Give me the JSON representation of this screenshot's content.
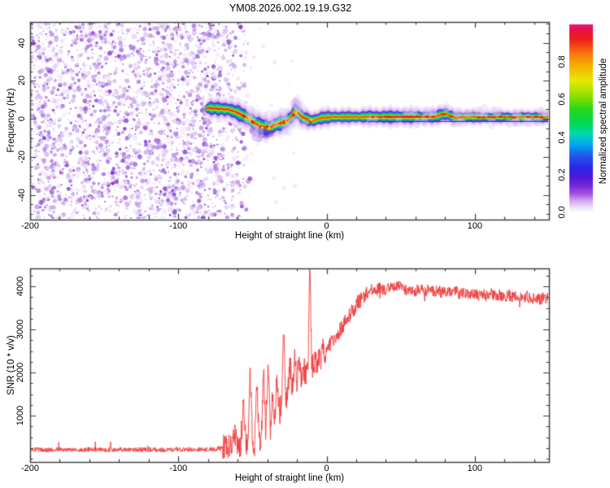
{
  "title": "YM08.2026.002.19.19.G32",
  "styles": {
    "axis_color": "#3a3a3a",
    "text_color": "#000000",
    "background": "#ffffff"
  },
  "chart_data": [
    {
      "type": "heatmap",
      "panel": "doppler-spectrogram",
      "xlabel": "Height of straight line (km)",
      "ylabel": "Frequency (Hz)",
      "xlim": [
        -200,
        150
      ],
      "ylim": [
        -53,
        51
      ],
      "x_major_ticks": [
        -200,
        -100,
        0,
        100
      ],
      "x_minor_step": 20,
      "y_major_ticks": [
        -40,
        -20,
        0,
        20,
        40
      ],
      "y_minor_step": 5,
      "grid": false,
      "colorbar": {
        "label": "Normalized spectral amplitude",
        "ticks": [
          0.0,
          0.2,
          0.4,
          0.6,
          0.8
        ],
        "range": [
          0,
          1
        ],
        "stops": [
          [
            0.0,
            "#ffffff"
          ],
          [
            0.02,
            "#f3e8fb"
          ],
          [
            0.06,
            "#d4aaf0"
          ],
          [
            0.1,
            "#a050e0"
          ],
          [
            0.14,
            "#7a28d8"
          ],
          [
            0.19,
            "#4a18d8"
          ],
          [
            0.24,
            "#2a2ae8"
          ],
          [
            0.3,
            "#2456ec"
          ],
          [
            0.36,
            "#00a8f0"
          ],
          [
            0.42,
            "#00d8b0"
          ],
          [
            0.47,
            "#00d855"
          ],
          [
            0.55,
            "#28d818"
          ],
          [
            0.62,
            "#90e000"
          ],
          [
            0.7,
            "#e8e800"
          ],
          [
            0.78,
            "#f8b000"
          ],
          [
            0.85,
            "#f87010"
          ],
          [
            0.92,
            "#f02018"
          ],
          [
            0.97,
            "#e81048"
          ],
          [
            1.0,
            "#e8187d"
          ]
        ]
      },
      "noise_region": {
        "x_full_until": -72,
        "x_fade_to": -50,
        "blob_count": 3200,
        "palette": [
          [
            "#f0e6fa",
            3
          ],
          [
            "#ddc3f4",
            3
          ],
          [
            "#c29ae9",
            2.5
          ],
          [
            "#a873e0",
            2
          ],
          [
            "#8a46d4",
            1.5
          ],
          [
            "#6b22c4",
            1
          ]
        ]
      },
      "echo_trace": {
        "comment": "points are [height_km, frequency_Hz, core_halfwidth_Hz, intensity]",
        "points": [
          [
            -82.5,
            5.2,
            0,
            0
          ],
          [
            -81,
            5.4,
            1.6,
            0.75
          ],
          [
            -79,
            5.8,
            2.0,
            0.9
          ],
          [
            -77,
            5.4,
            2.0,
            0.8
          ],
          [
            -75,
            5.6,
            1.8,
            0.7
          ],
          [
            -73,
            5.2,
            2.0,
            0.8
          ],
          [
            -71,
            5.4,
            1.9,
            0.85
          ],
          [
            -69,
            4.9,
            2.0,
            0.8
          ],
          [
            -67,
            5.1,
            2.1,
            0.85
          ],
          [
            -65,
            4.6,
            2.0,
            0.8
          ],
          [
            -63,
            4.1,
            2.0,
            0.75
          ],
          [
            -60,
            3.2,
            2.2,
            0.8
          ],
          [
            -57,
            2.0,
            2.3,
            0.85
          ],
          [
            -54,
            0.8,
            2.2,
            0.8
          ],
          [
            -51,
            -0.8,
            2.3,
            0.85
          ],
          [
            -48,
            -2.6,
            2.5,
            0.9
          ],
          [
            -45,
            -3.8,
            2.4,
            0.85
          ],
          [
            -42,
            -4.4,
            2.5,
            0.9
          ],
          [
            -39,
            -4.9,
            2.4,
            0.85
          ],
          [
            -36,
            -3.6,
            2.2,
            0.8
          ],
          [
            -33,
            -2.6,
            2.1,
            0.85
          ],
          [
            -30,
            -2.1,
            2.2,
            0.8
          ],
          [
            -27,
            -1.2,
            2.0,
            0.75
          ],
          [
            -24,
            0.8,
            2.2,
            0.85
          ],
          [
            -21,
            4.2,
            2.5,
            0.9
          ],
          [
            -19,
            3.0,
            2.2,
            0.85
          ],
          [
            -17,
            1.2,
            2.0,
            0.8
          ],
          [
            -15,
            0.4,
            1.9,
            0.85
          ],
          [
            -12,
            -0.6,
            1.9,
            0.9
          ],
          [
            -9,
            -0.9,
            1.8,
            0.85
          ],
          [
            -6,
            -0.1,
            1.8,
            0.9
          ],
          [
            -3,
            0.5,
            1.8,
            0.88
          ],
          [
            0,
            0.8,
            1.8,
            0.9
          ],
          [
            5,
            1.0,
            1.7,
            0.92
          ],
          [
            10,
            1.0,
            1.6,
            0.93
          ],
          [
            15,
            1.1,
            1.6,
            0.94
          ],
          [
            20,
            1.0,
            1.6,
            0.95
          ],
          [
            25,
            1.1,
            1.7,
            0.95
          ],
          [
            30,
            1.2,
            1.7,
            0.96
          ],
          [
            35,
            1.0,
            1.8,
            0.97
          ],
          [
            40,
            1.1,
            1.8,
            0.97
          ],
          [
            45,
            1.0,
            1.8,
            0.97
          ],
          [
            50,
            1.1,
            1.8,
            0.97
          ],
          [
            55,
            1.0,
            1.8,
            0.96
          ],
          [
            60,
            1.1,
            1.7,
            0.96
          ],
          [
            65,
            1.0,
            1.7,
            0.95
          ],
          [
            70,
            1.1,
            1.6,
            0.94
          ],
          [
            74,
            1.3,
            1.7,
            0.92
          ],
          [
            78,
            2.4,
            1.9,
            0.9
          ],
          [
            81,
            2.6,
            1.8,
            0.9
          ],
          [
            84,
            1.4,
            1.6,
            0.88
          ],
          [
            87,
            0.6,
            1.5,
            0.86
          ],
          [
            90,
            0.9,
            1.5,
            0.9
          ],
          [
            95,
            1.0,
            1.5,
            0.92
          ],
          [
            100,
            1.0,
            1.5,
            0.92
          ],
          [
            105,
            0.9,
            1.4,
            0.9
          ],
          [
            110,
            0.9,
            1.4,
            0.91
          ],
          [
            115,
            1.0,
            1.4,
            0.92
          ],
          [
            120,
            1.0,
            1.4,
            0.91
          ],
          [
            125,
            0.9,
            1.4,
            0.9
          ],
          [
            130,
            0.9,
            1.4,
            0.91
          ],
          [
            135,
            1.0,
            1.4,
            0.9
          ],
          [
            140,
            1.0,
            1.4,
            0.91
          ],
          [
            145,
            0.9,
            1.4,
            0.9
          ],
          [
            150,
            1.0,
            1.4,
            0.91
          ]
        ],
        "layers": [
          [
            1.0,
            "#f2e6fb"
          ],
          [
            0.76,
            "#ddc0f6"
          ],
          [
            0.58,
            "#b684e8"
          ],
          [
            0.5,
            "#7a34d4"
          ],
          [
            0.44,
            "#3a30e4"
          ],
          [
            0.37,
            "#00b2ec"
          ],
          [
            0.3,
            "#00d455"
          ],
          [
            0.175,
            "#d8e800"
          ],
          [
            0.1,
            "#f0331a"
          ]
        ],
        "bead_color": "#ee2015",
        "hot_color": "#ea1f38",
        "orange_color": "#f5790f",
        "halo_puff_colors": [
          "#e6d2f8",
          "#cba6ef"
        ]
      },
      "zero_line": {
        "f": -1.4,
        "x_range": [
          28,
          150
        ],
        "color": "#2233cc"
      }
    },
    {
      "type": "line",
      "panel": "snr-profile",
      "xlabel": "Height of straight line (km)",
      "ylabel": "SNR (10 * v/v)",
      "xlim": [
        -200,
        150
      ],
      "ylim": [
        -75,
        4415
      ],
      "x_major_ticks": [
        -200,
        -100,
        0,
        100
      ],
      "x_minor_step": 20,
      "y_major_ticks": [
        1000,
        2000,
        3000,
        4000
      ],
      "y_minor_step": 250,
      "grid": false,
      "series": [
        {
          "name": "SNR",
          "color": "#ee3a3b",
          "anchors": [
            [
              -200,
              215
            ],
            [
              -190,
              205
            ],
            [
              -180,
              220
            ],
            [
              -170,
              200
            ],
            [
              -160,
              218
            ],
            [
              -150,
              204
            ],
            [
              -140,
              216
            ],
            [
              -130,
              206
            ],
            [
              -120,
              214
            ],
            [
              -110,
              202
            ],
            [
              -100,
              216
            ],
            [
              -90,
              208
            ],
            [
              -82,
              212
            ],
            [
              -76,
              225
            ],
            [
              -71,
              240
            ],
            [
              -67,
              310
            ],
            [
              -64,
              280
            ],
            [
              -62,
              650
            ],
            [
              -60,
              300
            ],
            [
              -58,
              330
            ],
            [
              -56,
              1250
            ],
            [
              -54.5,
              330
            ],
            [
              -53,
              400
            ],
            [
              -51.5,
              2060
            ],
            [
              -50,
              380
            ],
            [
              -48.5,
              340
            ],
            [
              -47,
              1760
            ],
            [
              -45.5,
              420
            ],
            [
              -44,
              520
            ],
            [
              -42.5,
              2120
            ],
            [
              -41,
              540
            ],
            [
              -39.5,
              2230
            ],
            [
              -38,
              640
            ],
            [
              -36.5,
              1500
            ],
            [
              -35,
              860
            ],
            [
              -33.5,
              1900
            ],
            [
              -32,
              1060
            ],
            [
              -30.5,
              1260
            ],
            [
              -29,
              2960
            ],
            [
              -27.5,
              1350
            ],
            [
              -26,
              1740
            ],
            [
              -24.5,
              2120
            ],
            [
              -23,
              1560
            ],
            [
              -21.5,
              2340
            ],
            [
              -20,
              1660
            ],
            [
              -18.5,
              2460
            ],
            [
              -17,
              1700
            ],
            [
              -15.5,
              2120
            ],
            [
              -14,
              1960
            ],
            [
              -12.5,
              2240
            ],
            [
              -11.3,
              4620
            ],
            [
              -10,
              2000
            ],
            [
              -8.5,
              2360
            ],
            [
              -7,
              2140
            ],
            [
              -5.5,
              2460
            ],
            [
              -4,
              2260
            ],
            [
              -2.5,
              2520
            ],
            [
              -1,
              2400
            ],
            [
              0.5,
              2560
            ],
            [
              2,
              2660
            ],
            [
              4,
              2740
            ],
            [
              6,
              2820
            ],
            [
              8,
              2940
            ],
            [
              10,
              3040
            ],
            [
              12,
              3140
            ],
            [
              14,
              3260
            ],
            [
              16,
              3360
            ],
            [
              18,
              3460
            ],
            [
              20,
              3560
            ],
            [
              22,
              3660
            ],
            [
              24,
              3740
            ],
            [
              26,
              3820
            ],
            [
              28,
              3880
            ],
            [
              30,
              3930
            ],
            [
              33,
              3900
            ],
            [
              36,
              3960
            ],
            [
              39,
              3910
            ],
            [
              42,
              3980
            ],
            [
              45,
              3930
            ],
            [
              48,
              4000
            ],
            [
              51,
              3950
            ],
            [
              54,
              3900
            ],
            [
              57,
              3950
            ],
            [
              60,
              3890
            ],
            [
              63,
              3940
            ],
            [
              66,
              3880
            ],
            [
              69,
              3930
            ],
            [
              72,
              3870
            ],
            [
              75,
              3920
            ],
            [
              78,
              3850
            ],
            [
              81,
              3900
            ],
            [
              84,
              3830
            ],
            [
              87,
              3890
            ],
            [
              90,
              3820
            ],
            [
              93,
              3860
            ],
            [
              96,
              3800
            ],
            [
              99,
              3850
            ],
            [
              102,
              3790
            ],
            [
              105,
              3840
            ],
            [
              108,
              3770
            ],
            [
              111,
              3820
            ],
            [
              114,
              3760
            ],
            [
              117,
              3810
            ],
            [
              120,
              3750
            ],
            [
              123,
              3800
            ],
            [
              126,
              3730
            ],
            [
              129,
              3780
            ],
            [
              132,
              3720
            ],
            [
              135,
              3770
            ],
            [
              138,
              3700
            ],
            [
              141,
              3760
            ],
            [
              144,
              3690
            ],
            [
              147,
              3750
            ],
            [
              150,
              3710
            ]
          ],
          "jitter_zones": [
            {
              "x_max": -70,
              "amp": 110
            },
            {
              "x_max": -32,
              "amp": 600
            },
            {
              "x_max": -2,
              "amp": 650
            },
            {
              "x_max": 28,
              "amp": 380
            },
            {
              "x_max": 151,
              "amp": 270
            }
          ]
        }
      ]
    }
  ]
}
